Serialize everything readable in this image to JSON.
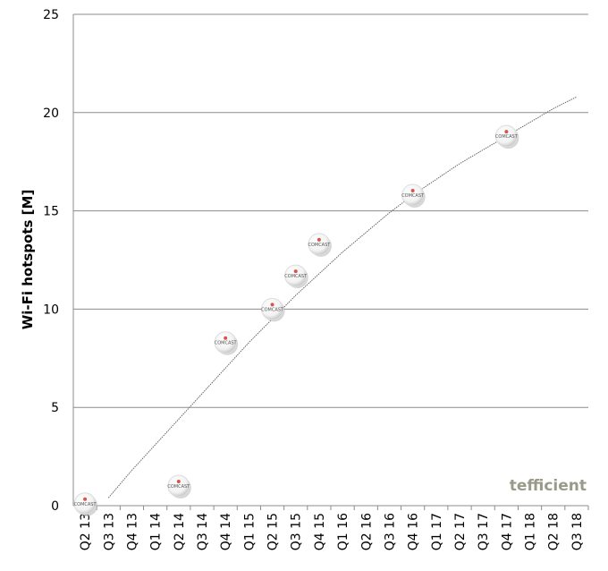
{
  "chart_data": {
    "type": "scatter",
    "y_label": "Wi-Fi hotspots [M]",
    "watermark": "tefficient",
    "categories": [
      "Q2 13",
      "Q3 13",
      "Q4 13",
      "Q1 14",
      "Q2 14",
      "Q3 14",
      "Q4 14",
      "Q1 15",
      "Q2 15",
      "Q3 15",
      "Q4 15",
      "Q1 16",
      "Q2 16",
      "Q3 16",
      "Q4 16",
      "Q1 17",
      "Q2 17",
      "Q3 17",
      "Q4 17",
      "Q1 18",
      "Q2 18",
      "Q3 18"
    ],
    "series": [
      {
        "marker_label": "COMCAST",
        "color": "#ffffff",
        "values": [
          0.1,
          null,
          null,
          null,
          1.0,
          null,
          8.3,
          null,
          10.0,
          11.7,
          13.3,
          null,
          null,
          null,
          15.8,
          null,
          null,
          null,
          18.8,
          null,
          null,
          null
        ]
      },
      {
        "style": "trend",
        "color": "#666666",
        "values": [
          null,
          0.4,
          1.8,
          3.1,
          4.4,
          5.7,
          7.0,
          8.3,
          9.5,
          10.7,
          11.8,
          12.9,
          13.9,
          14.9,
          15.8,
          16.6,
          17.4,
          18.1,
          18.8,
          19.5,
          20.2,
          20.8
        ]
      }
    ],
    "ylim": [
      0,
      25
    ],
    "yticks": [
      0,
      5,
      10,
      15,
      20,
      25
    ],
    "grid": true
  }
}
